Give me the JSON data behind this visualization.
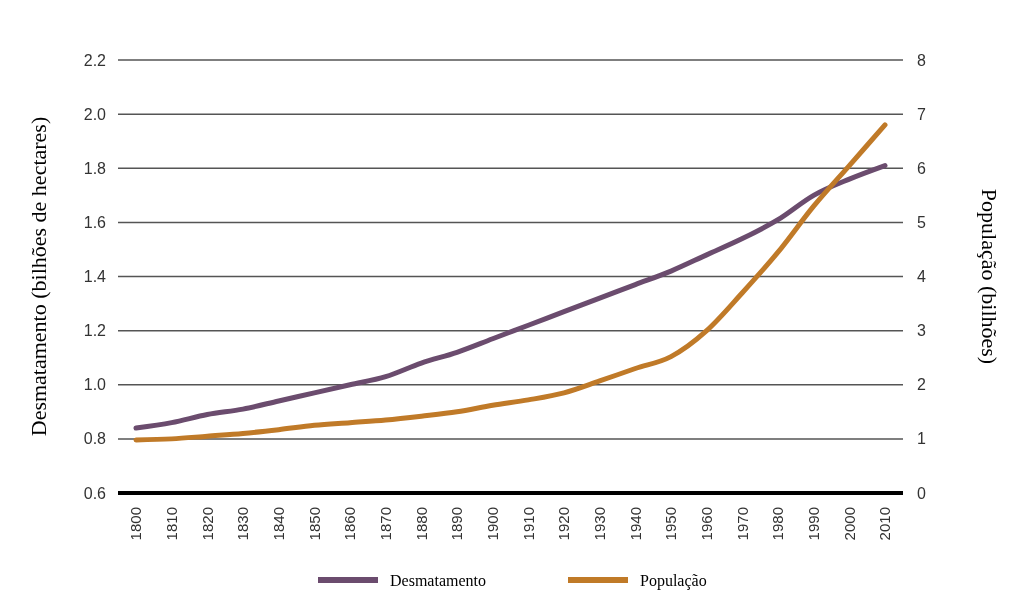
{
  "chart_data": {
    "type": "line",
    "ylabel": "Desmatamento (bilhões de hectares)",
    "y2label": "População (bilhões)",
    "categories": [
      "1800",
      "1810",
      "1820",
      "1830",
      "1840",
      "1850",
      "1860",
      "1870",
      "1880",
      "1890",
      "1900",
      "1910",
      "1920",
      "1930",
      "1940",
      "1950",
      "1960",
      "1970",
      "1980",
      "1990",
      "2000",
      "2010"
    ],
    "series": [
      {
        "name": "Desmatamento",
        "color": "#6b4c6e",
        "values": [
          0.84,
          0.86,
          0.89,
          0.91,
          0.94,
          0.97,
          1.0,
          1.03,
          1.08,
          1.12,
          1.17,
          1.22,
          1.27,
          1.32,
          1.37,
          1.42,
          1.48,
          1.54,
          1.61,
          1.7,
          1.76,
          1.81
        ]
      },
      {
        "name": "População",
        "color": "#c07a28",
        "axis": "y2",
        "values": [
          0.98,
          1.0,
          1.05,
          1.1,
          1.17,
          1.25,
          1.3,
          1.35,
          1.42,
          1.5,
          1.62,
          1.72,
          1.85,
          2.07,
          2.3,
          2.52,
          3.0,
          3.7,
          4.45,
          5.3,
          6.05,
          6.8
        ]
      }
    ],
    "ylim": [
      0.6,
      2.2
    ],
    "yticks": [
      {
        "value": 0.6,
        "label": "0.6"
      },
      {
        "value": 0.8,
        "label": "0.8"
      },
      {
        "value": 1.0,
        "label": "1.0"
      },
      {
        "value": 1.2,
        "label": "1.2"
      },
      {
        "value": 1.4,
        "label": "1.4"
      },
      {
        "value": 1.6,
        "label": "1.6"
      },
      {
        "value": 1.8,
        "label": "1.8"
      },
      {
        "value": 2.0,
        "label": "2.0"
      },
      {
        "value": 2.2,
        "label": "2.2"
      }
    ],
    "y2lim": [
      0,
      8
    ],
    "y2ticks": [
      0,
      1,
      2,
      3,
      4,
      5,
      6,
      7,
      8
    ],
    "grid": "y",
    "legend": "bottom"
  }
}
